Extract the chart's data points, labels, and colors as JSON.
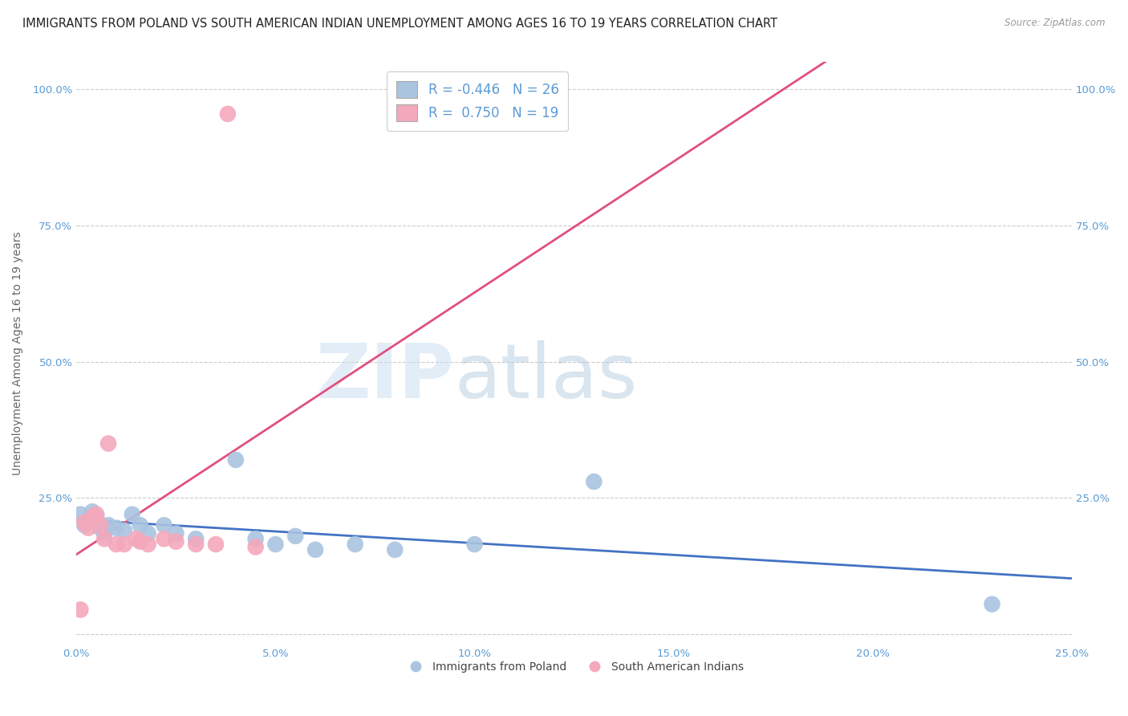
{
  "title": "IMMIGRANTS FROM POLAND VS SOUTH AMERICAN INDIAN UNEMPLOYMENT AMONG AGES 16 TO 19 YEARS CORRELATION CHART",
  "source": "Source: ZipAtlas.com",
  "ylabel": "Unemployment Among Ages 16 to 19 years",
  "xlabel": "",
  "xlim": [
    0.0,
    0.25
  ],
  "ylim": [
    -0.02,
    1.05
  ],
  "xticks": [
    0.0,
    0.05,
    0.1,
    0.15,
    0.2,
    0.25
  ],
  "yticks": [
    0.0,
    0.25,
    0.5,
    0.75,
    1.0
  ],
  "ytick_labels_left": [
    "",
    "25.0%",
    "50.0%",
    "75.0%",
    "100.0%"
  ],
  "ytick_labels_right": [
    "",
    "25.0%",
    "50.0%",
    "75.0%",
    "100.0%"
  ],
  "xtick_labels": [
    "0.0%",
    "5.0%",
    "10.0%",
    "15.0%",
    "20.0%",
    "25.0%"
  ],
  "legend_blue_r": "-0.446",
  "legend_blue_n": "26",
  "legend_pink_r": "0.750",
  "legend_pink_n": "19",
  "blue_color": "#aac4e0",
  "pink_color": "#f4a8bc",
  "trend_blue_color": "#4472c4",
  "trend_pink_color": "#e05080",
  "blue_scatter": [
    [
      0.001,
      0.22
    ],
    [
      0.002,
      0.2
    ],
    [
      0.003,
      0.21
    ],
    [
      0.004,
      0.225
    ],
    [
      0.005,
      0.215
    ],
    [
      0.006,
      0.195
    ],
    [
      0.007,
      0.185
    ],
    [
      0.008,
      0.2
    ],
    [
      0.01,
      0.195
    ],
    [
      0.012,
      0.19
    ],
    [
      0.014,
      0.22
    ],
    [
      0.016,
      0.2
    ],
    [
      0.018,
      0.185
    ],
    [
      0.022,
      0.2
    ],
    [
      0.025,
      0.185
    ],
    [
      0.03,
      0.175
    ],
    [
      0.04,
      0.32
    ],
    [
      0.045,
      0.175
    ],
    [
      0.05,
      0.165
    ],
    [
      0.055,
      0.18
    ],
    [
      0.06,
      0.155
    ],
    [
      0.07,
      0.165
    ],
    [
      0.08,
      0.155
    ],
    [
      0.1,
      0.165
    ],
    [
      0.13,
      0.28
    ],
    [
      0.23,
      0.055
    ]
  ],
  "pink_scatter": [
    [
      0.001,
      0.045
    ],
    [
      0.002,
      0.205
    ],
    [
      0.003,
      0.195
    ],
    [
      0.004,
      0.215
    ],
    [
      0.005,
      0.22
    ],
    [
      0.006,
      0.2
    ],
    [
      0.007,
      0.175
    ],
    [
      0.008,
      0.35
    ],
    [
      0.01,
      0.165
    ],
    [
      0.012,
      0.165
    ],
    [
      0.015,
      0.175
    ],
    [
      0.016,
      0.17
    ],
    [
      0.018,
      0.165
    ],
    [
      0.022,
      0.175
    ],
    [
      0.025,
      0.17
    ],
    [
      0.03,
      0.165
    ],
    [
      0.035,
      0.165
    ],
    [
      0.038,
      0.955
    ],
    [
      0.045,
      0.16
    ]
  ],
  "watermark_zip": "ZIP",
  "watermark_atlas": "atlas",
  "background_color": "#ffffff",
  "grid_color": "#cccccc",
  "title_fontsize": 10.5,
  "axis_fontsize": 10,
  "tick_fontsize": 9.5,
  "legend_fontsize": 12
}
